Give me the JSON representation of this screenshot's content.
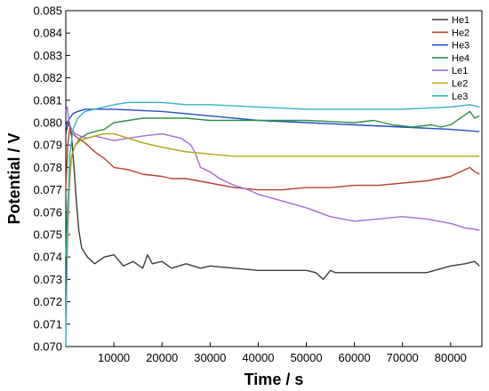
{
  "chart_data": {
    "type": "line",
    "title": "",
    "xlabel": "Time / s",
    "ylabel": "Potential / V",
    "xlim": [
      0,
      86500
    ],
    "ylim": [
      0.07,
      0.085
    ],
    "xticks": [
      10000,
      20000,
      30000,
      40000,
      50000,
      60000,
      70000,
      80000
    ],
    "xtick_labels": [
      "10000",
      "20000",
      "30000",
      "40000",
      "50000",
      "60000",
      "70000",
      "80000"
    ],
    "yticks": [
      0.07,
      0.071,
      0.072,
      0.073,
      0.074,
      0.075,
      0.076,
      0.077,
      0.078,
      0.079,
      0.08,
      0.081,
      0.082,
      0.083,
      0.084,
      0.085
    ],
    "ytick_labels": [
      "0.070",
      "0.071",
      "0.072",
      "0.073",
      "0.074",
      "0.075",
      "0.076",
      "0.077",
      "0.078",
      "0.079",
      "0.080",
      "0.081",
      "0.082",
      "0.083",
      "0.084",
      "0.085"
    ],
    "grid": false,
    "legend_position": "top-right",
    "series": [
      {
        "name": "He1",
        "color": "#3c3c3c",
        "x": [
          0,
          300,
          700,
          1200,
          1700,
          2200,
          2700,
          3300,
          4500,
          6000,
          8000,
          10000,
          12000,
          14000,
          16000,
          17000,
          18000,
          20000,
          22000,
          25000,
          28000,
          30000,
          35000,
          40000,
          45000,
          50000,
          52000,
          53500,
          55000,
          56000,
          60000,
          65000,
          70000,
          75000,
          80000,
          83000,
          85000,
          86000
        ],
        "y": [
          0.0795,
          0.0798,
          0.08,
          0.0794,
          0.078,
          0.0765,
          0.0752,
          0.0744,
          0.074,
          0.0737,
          0.074,
          0.0741,
          0.0736,
          0.0738,
          0.0735,
          0.0741,
          0.0737,
          0.0738,
          0.0735,
          0.0737,
          0.0735,
          0.0736,
          0.0735,
          0.0734,
          0.0734,
          0.0734,
          0.0733,
          0.073,
          0.0734,
          0.0733,
          0.0733,
          0.0733,
          0.0733,
          0.0733,
          0.0736,
          0.0737,
          0.0738,
          0.0736
        ]
      },
      {
        "name": "He2",
        "color": "#b5432e",
        "x": [
          0,
          400,
          800,
          1500,
          2500,
          4000,
          6000,
          8000,
          10000,
          13000,
          16000,
          20000,
          22000,
          25000,
          30000,
          35000,
          40000,
          45000,
          50000,
          55000,
          60000,
          65000,
          70000,
          75000,
          80000,
          82000,
          84000,
          85000,
          86000
        ],
        "y": [
          0.077,
          0.079,
          0.0797,
          0.0795,
          0.0793,
          0.0791,
          0.0787,
          0.0784,
          0.078,
          0.0779,
          0.0777,
          0.0776,
          0.0775,
          0.0775,
          0.0773,
          0.0771,
          0.077,
          0.077,
          0.0771,
          0.0771,
          0.0772,
          0.0772,
          0.0773,
          0.0774,
          0.0776,
          0.0778,
          0.078,
          0.0778,
          0.0777
        ]
      },
      {
        "name": "He3",
        "color": "#1f4fbf",
        "x": [
          0,
          300,
          800,
          1500,
          2500,
          4000,
          6000,
          10000,
          20000,
          30000,
          40000,
          50000,
          60000,
          70000,
          80000,
          86000
        ],
        "y": [
          0.0798,
          0.08,
          0.0802,
          0.0804,
          0.0805,
          0.0806,
          0.0806,
          0.0806,
          0.0805,
          0.0803,
          0.0801,
          0.08,
          0.0799,
          0.0798,
          0.0797,
          0.0796
        ]
      },
      {
        "name": "He4",
        "color": "#2f8f4a",
        "x": [
          0,
          300,
          700,
          1200,
          2000,
          3000,
          4500,
          6000,
          8000,
          10000,
          13000,
          16000,
          20000,
          25000,
          30000,
          40000,
          50000,
          60000,
          64000,
          68000,
          72000,
          76000,
          78000,
          80000,
          82000,
          84000,
          85000,
          86000
        ],
        "y": [
          0.074,
          0.076,
          0.0775,
          0.0785,
          0.079,
          0.0793,
          0.0795,
          0.0796,
          0.0797,
          0.08,
          0.0801,
          0.0802,
          0.0802,
          0.0802,
          0.0801,
          0.0801,
          0.0801,
          0.08,
          0.0801,
          0.0799,
          0.0798,
          0.0799,
          0.0798,
          0.0799,
          0.0802,
          0.0805,
          0.0802,
          0.0803
        ]
      },
      {
        "name": "Le1",
        "color": "#a56cd8",
        "x": [
          0,
          300,
          700,
          1200,
          2000,
          3000,
          4500,
          6000,
          8000,
          10000,
          13000,
          16000,
          20000,
          24000,
          26000,
          27000,
          28000,
          30000,
          32000,
          35000,
          38000,
          40000,
          45000,
          50000,
          55000,
          60000,
          65000,
          70000,
          75000,
          80000,
          83000,
          86000
        ],
        "y": [
          0.0805,
          0.0807,
          0.08,
          0.0797,
          0.0795,
          0.0794,
          0.0793,
          0.0794,
          0.0793,
          0.0792,
          0.0793,
          0.0794,
          0.0795,
          0.0793,
          0.079,
          0.0786,
          0.078,
          0.0778,
          0.0775,
          0.0772,
          0.077,
          0.0768,
          0.0765,
          0.0762,
          0.0758,
          0.0756,
          0.0757,
          0.0758,
          0.0757,
          0.0755,
          0.0753,
          0.0752
        ]
      },
      {
        "name": "Le2",
        "color": "#b5a30d",
        "x": [
          0,
          300,
          700,
          1200,
          2000,
          3000,
          4500,
          6000,
          8000,
          10000,
          13000,
          16000,
          20000,
          25000,
          30000,
          35000,
          40000,
          50000,
          60000,
          70000,
          80000,
          86000
        ],
        "y": [
          0.07,
          0.074,
          0.077,
          0.0785,
          0.079,
          0.0792,
          0.0793,
          0.0794,
          0.0795,
          0.0795,
          0.0793,
          0.0791,
          0.0789,
          0.0787,
          0.0786,
          0.0785,
          0.0785,
          0.0785,
          0.0785,
          0.0785,
          0.0785,
          0.0785
        ]
      },
      {
        "name": "Le3",
        "color": "#36b3c8",
        "x": [
          0,
          300,
          800,
          1500,
          2500,
          4000,
          6000,
          8000,
          10000,
          13000,
          16000,
          20000,
          25000,
          30000,
          40000,
          50000,
          60000,
          70000,
          80000,
          84000,
          86000
        ],
        "y": [
          0.07,
          0.075,
          0.0785,
          0.0797,
          0.0802,
          0.0805,
          0.0806,
          0.0807,
          0.0808,
          0.0809,
          0.0809,
          0.0809,
          0.0808,
          0.0808,
          0.0807,
          0.0806,
          0.0806,
          0.0806,
          0.0807,
          0.0808,
          0.0807
        ]
      }
    ]
  }
}
